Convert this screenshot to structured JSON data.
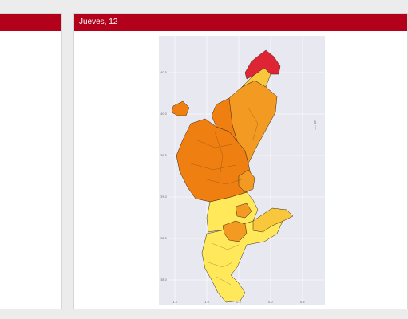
{
  "panels": {
    "left": {
      "header": ""
    },
    "right": {
      "header": "Jueves, 12"
    }
  },
  "map": {
    "plot_background": "#e8e8f0",
    "region_colors": [
      "#ffe95a",
      "#f8c73c",
      "#f29a22",
      "#f07f12",
      "#df2535"
    ],
    "compass_label": "N",
    "y_ticks": [
      "40.5",
      "40.0",
      "39.5",
      "39.0",
      "38.5",
      "38.0"
    ],
    "x_ticks": [
      "-1.5",
      "-1.0",
      "-0.5",
      "0.0",
      "0.5"
    ]
  }
}
